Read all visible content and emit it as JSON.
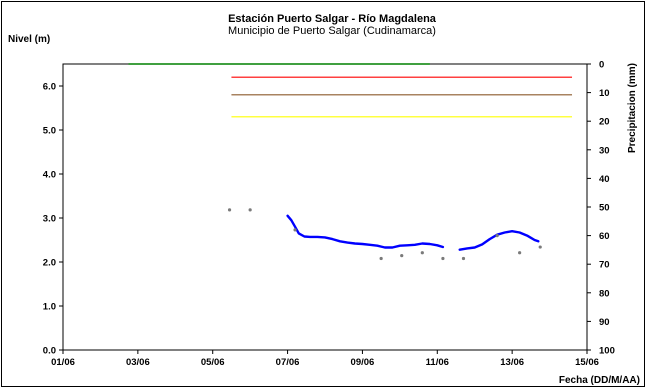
{
  "chart_data": {
    "type": "line",
    "title": "Estación Puerto Salgar - Río Magdalena",
    "subtitle": "Municipio de Puerto Salgar (Cudinamarca)",
    "ylabel": "Nivel (m)",
    "y2label": "Precipitacion (mm)",
    "xlabel": "Fecha (DD/M/AA)",
    "xlim": [
      0,
      14
    ],
    "ylim": [
      0,
      6.5
    ],
    "y2lim": [
      0,
      100
    ],
    "y2_inverted": true,
    "x_ticks": [
      {
        "v": 0,
        "label": "01/06"
      },
      {
        "v": 2,
        "label": "03/06"
      },
      {
        "v": 4,
        "label": "05/06"
      },
      {
        "v": 6,
        "label": "07/06"
      },
      {
        "v": 8,
        "label": "09/06"
      },
      {
        "v": 10,
        "label": "11/06"
      },
      {
        "v": 12,
        "label": "13/06"
      },
      {
        "v": 14,
        "label": "15/06"
      }
    ],
    "y_ticks": [
      {
        "v": 0,
        "label": "0.0"
      },
      {
        "v": 1,
        "label": "1.0"
      },
      {
        "v": 2,
        "label": "2.0"
      },
      {
        "v": 3,
        "label": "3.0"
      },
      {
        "v": 4,
        "label": "4.0"
      },
      {
        "v": 5,
        "label": "5.0"
      },
      {
        "v": 6,
        "label": "6.0"
      }
    ],
    "y2_ticks": [
      {
        "v": 0,
        "label": "0"
      },
      {
        "v": 10,
        "label": "10"
      },
      {
        "v": 20,
        "label": "20"
      },
      {
        "v": 30,
        "label": "30"
      },
      {
        "v": 40,
        "label": "40"
      },
      {
        "v": 50,
        "label": "50"
      },
      {
        "v": 60,
        "label": "60"
      },
      {
        "v": 70,
        "label": "70"
      },
      {
        "v": 80,
        "label": "80"
      },
      {
        "v": 90,
        "label": "90"
      },
      {
        "v": 100,
        "label": "100"
      }
    ],
    "reference_lines": [
      {
        "id": "green",
        "y": 6.5,
        "x0": 1.75,
        "x1": 9.8,
        "color": "#008000"
      },
      {
        "id": "red",
        "y": 6.2,
        "x0": 4.5,
        "x1": 13.6,
        "color": "#ff0000"
      },
      {
        "id": "brown",
        "y": 5.8,
        "x0": 4.5,
        "x1": 13.6,
        "color": "#8b5a2b"
      },
      {
        "id": "yellow",
        "y": 5.3,
        "x0": 4.5,
        "x1": 13.6,
        "color": "#ffff00"
      }
    ],
    "series": [
      {
        "id": "nivel-1",
        "color": "#0000ff",
        "points": [
          [
            6.0,
            3.05
          ],
          [
            6.1,
            2.95
          ],
          [
            6.2,
            2.8
          ],
          [
            6.3,
            2.65
          ],
          [
            6.45,
            2.58
          ],
          [
            6.6,
            2.57
          ],
          [
            6.8,
            2.57
          ],
          [
            7.0,
            2.56
          ],
          [
            7.2,
            2.52
          ],
          [
            7.4,
            2.47
          ],
          [
            7.6,
            2.44
          ],
          [
            7.8,
            2.42
          ],
          [
            8.0,
            2.41
          ],
          [
            8.2,
            2.39
          ],
          [
            8.4,
            2.37
          ],
          [
            8.6,
            2.33
          ],
          [
            8.8,
            2.33
          ],
          [
            9.0,
            2.37
          ],
          [
            9.2,
            2.38
          ],
          [
            9.4,
            2.39
          ],
          [
            9.6,
            2.42
          ],
          [
            9.8,
            2.41
          ],
          [
            10.0,
            2.38
          ],
          [
            10.15,
            2.34
          ]
        ]
      },
      {
        "id": "nivel-2",
        "color": "#0000ff",
        "points": [
          [
            10.6,
            2.28
          ],
          [
            10.8,
            2.31
          ],
          [
            11.0,
            2.33
          ],
          [
            11.2,
            2.4
          ],
          [
            11.4,
            2.52
          ],
          [
            11.6,
            2.62
          ],
          [
            11.8,
            2.67
          ],
          [
            12.0,
            2.7
          ],
          [
            12.2,
            2.67
          ],
          [
            12.4,
            2.6
          ],
          [
            12.5,
            2.55
          ],
          [
            12.6,
            2.5
          ],
          [
            12.7,
            2.47
          ]
        ]
      }
    ],
    "precip_points": [
      [
        4.45,
        51
      ],
      [
        5.0,
        51
      ],
      [
        6.2,
        58
      ],
      [
        8.5,
        68
      ],
      [
        9.05,
        67
      ],
      [
        9.6,
        66
      ],
      [
        10.15,
        68
      ],
      [
        10.7,
        68
      ],
      [
        11.6,
        60
      ],
      [
        12.2,
        66
      ],
      [
        12.75,
        64
      ]
    ]
  }
}
